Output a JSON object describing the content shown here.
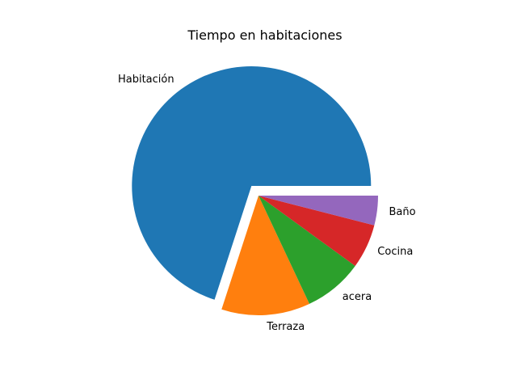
{
  "chart_data": {
    "type": "pie",
    "title": "Tiempo en habitaciones",
    "start_angle_deg": 0,
    "direction": "counterclockwise",
    "explode": [
      0.1,
      0,
      0,
      0,
      0
    ],
    "slices": [
      {
        "label": "Habitación",
        "value": 70,
        "color": "#1f77b4"
      },
      {
        "label": "Terraza",
        "value": 12,
        "color": "#ff7f0e"
      },
      {
        "label": "acera",
        "value": 8,
        "color": "#2ca02c"
      },
      {
        "label": "Cocina",
        "value": 6,
        "color": "#d62728"
      },
      {
        "label": "Baño",
        "value": 4,
        "color": "#9467bd"
      }
    ]
  }
}
